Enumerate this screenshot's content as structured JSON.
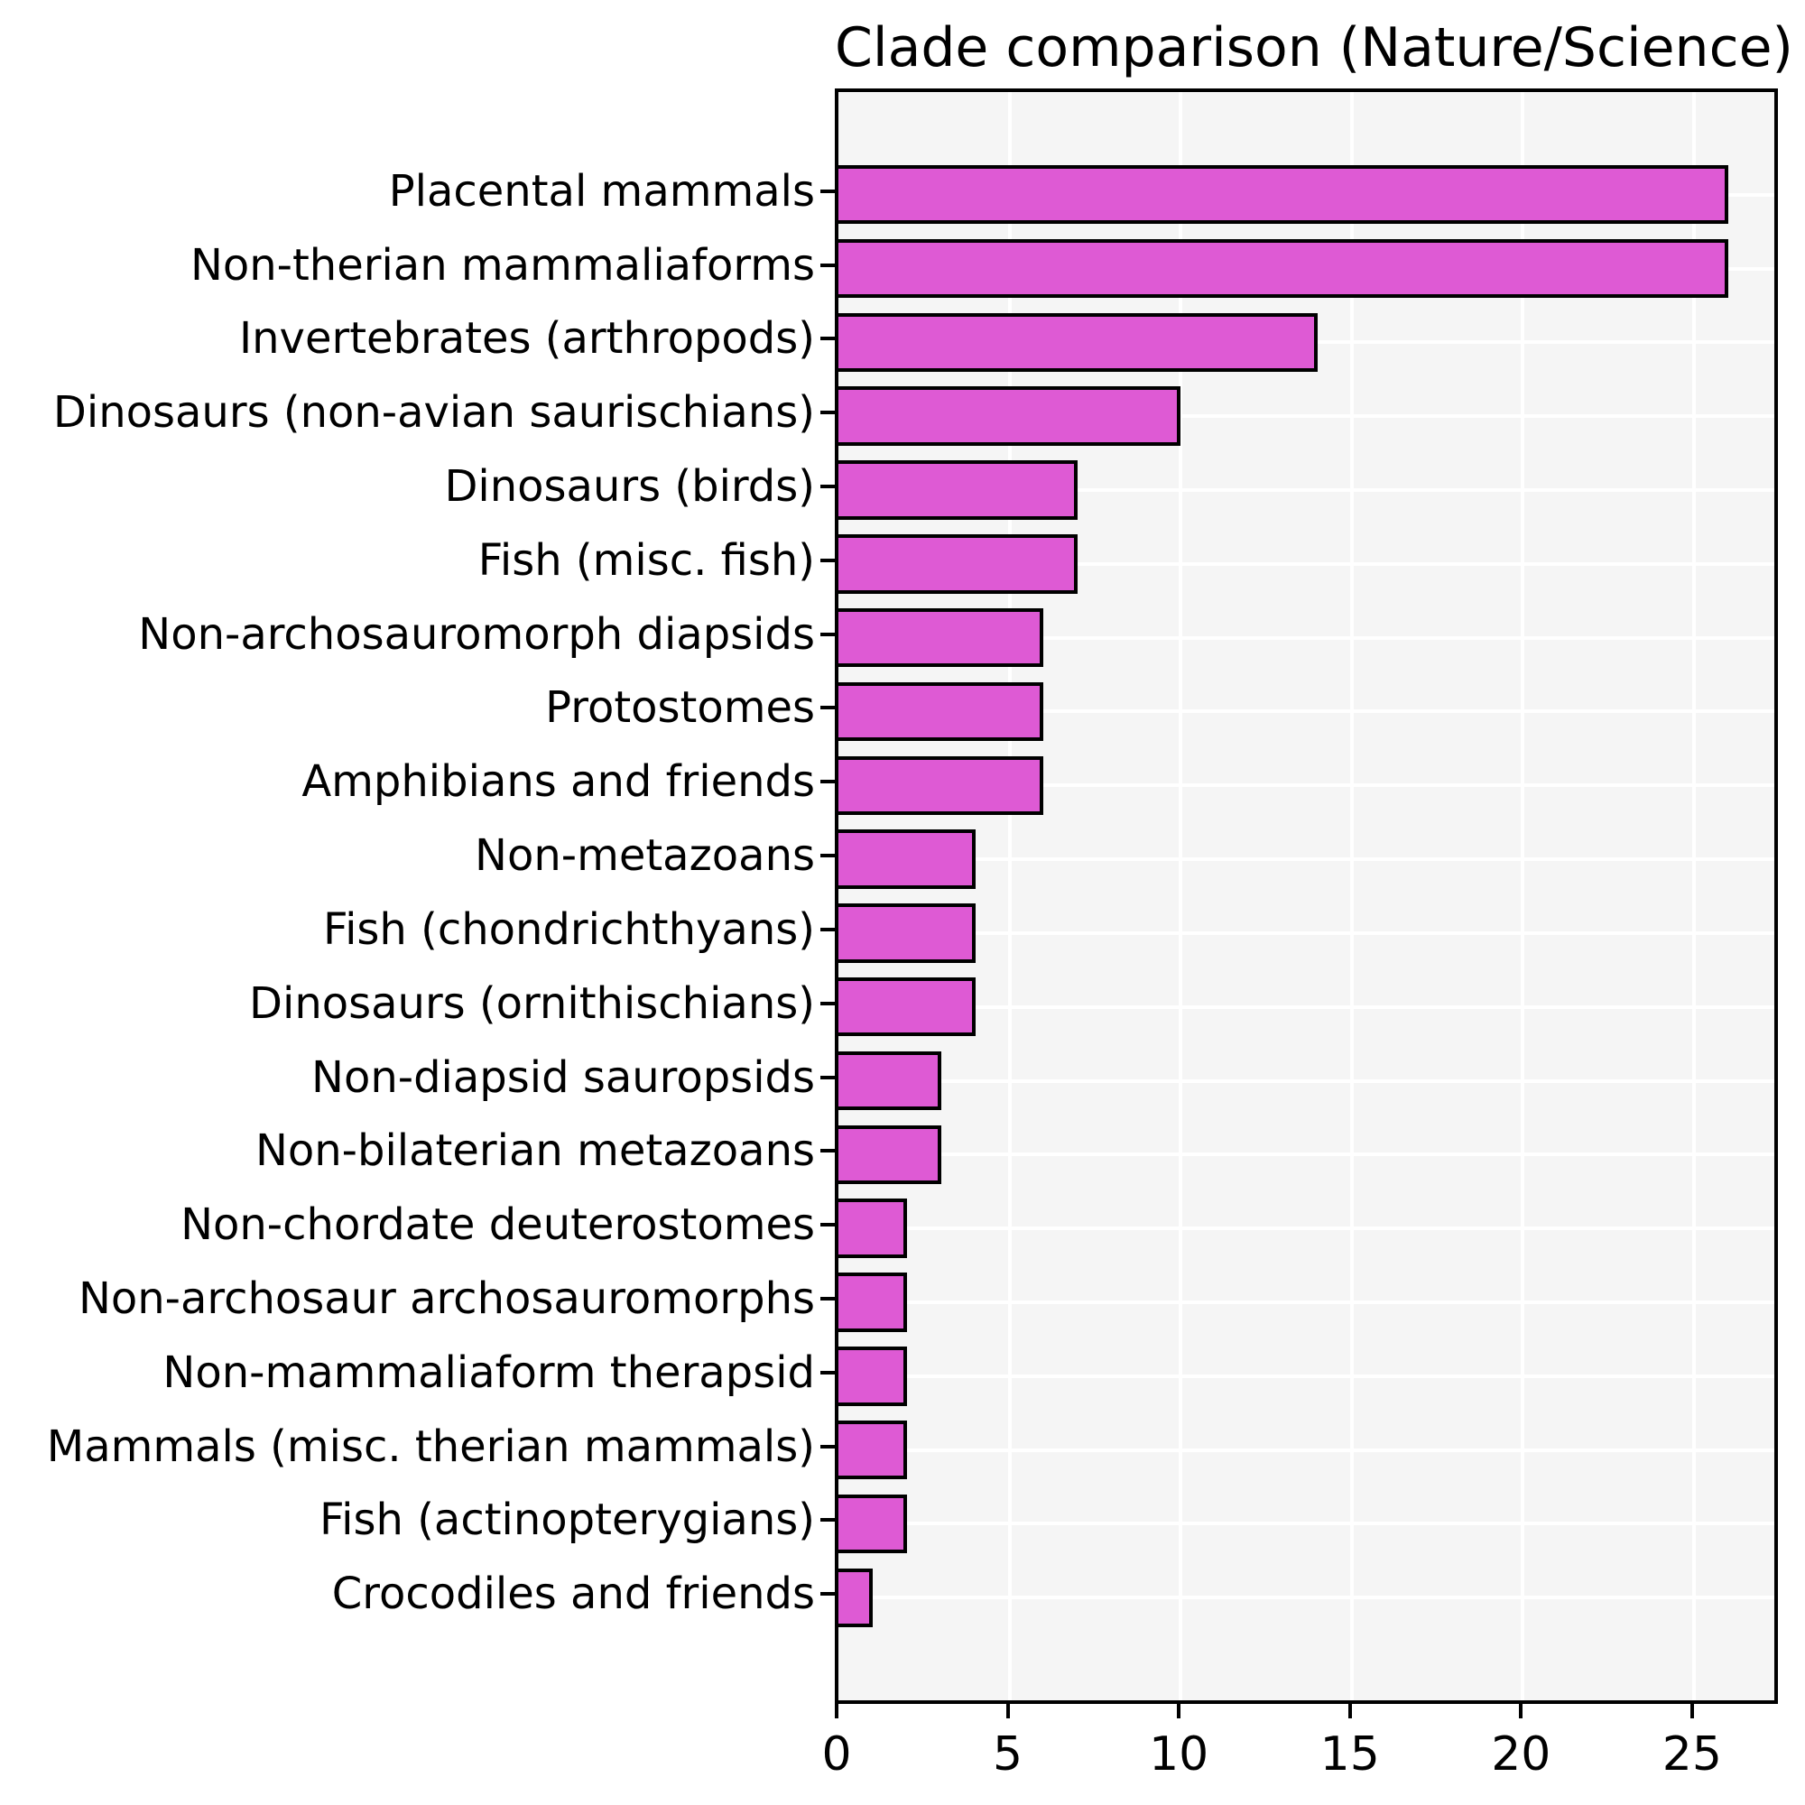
{
  "title": "Clade comparison (Nature/Science)",
  "chart_data": {
    "type": "bar",
    "orientation": "horizontal",
    "title": "Clade comparison (Nature/Science)",
    "categories": [
      "Placental mammals",
      "Non-therian mammaliaforms",
      "Invertebrates (arthropods)",
      "Dinosaurs (non-avian saurischians)",
      "Dinosaurs (birds)",
      "Fish (misc. fish)",
      "Non-archosauromorph diapsids",
      "Protostomes",
      "Amphibians and friends",
      "Non-metazoans",
      "Fish (chondrichthyans)",
      "Dinosaurs (ornithischians)",
      "Non-diapsid sauropsids",
      "Non-bilaterian metazoans",
      "Non-chordate deuterostomes",
      "Non-archosaur archosauromorphs",
      "Non-mammaliaform therapsid",
      "Mammals (misc. therian mammals)",
      "Fish (actinopterygians)",
      "Crocodiles and friends"
    ],
    "values": [
      26,
      26,
      14,
      10,
      7,
      7,
      6,
      6,
      6,
      4,
      4,
      4,
      3,
      3,
      2,
      2,
      2,
      2,
      2,
      1
    ],
    "xlabel": "",
    "ylabel": "",
    "xlim": [
      0,
      27.35
    ],
    "xticks": [
      0,
      5,
      10,
      15,
      20,
      25
    ],
    "grid": true,
    "legend": null,
    "colors": {
      "bar_fill": "#de5ad4",
      "bar_edge": "#000000",
      "plot_background": "#f5f5f5",
      "gridline": "#ffffff",
      "figure_background": "#ffffff",
      "text": "#000000"
    }
  }
}
